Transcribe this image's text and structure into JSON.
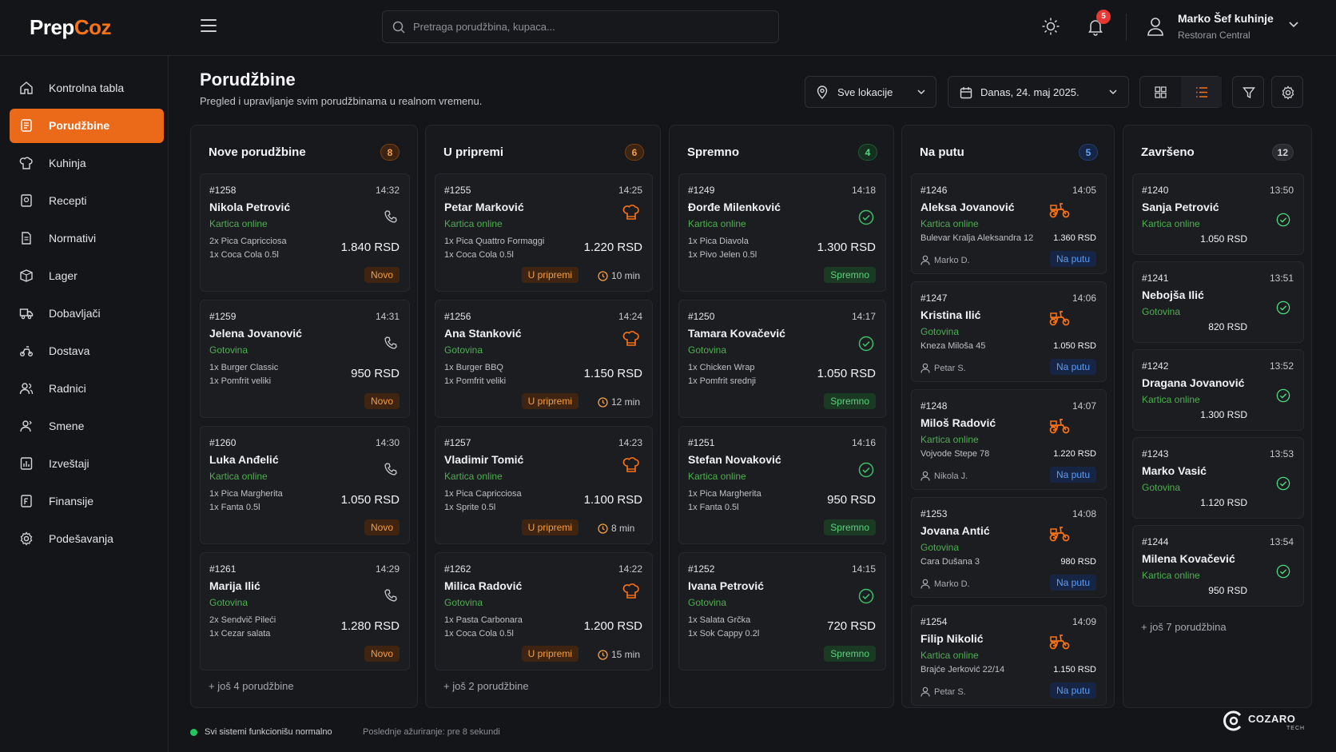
{
  "brand": {
    "part1": "Prep",
    "part2": "Coz"
  },
  "search": {
    "placeholder": "Pretraga porudžbina, kupaca..."
  },
  "notifications": {
    "count": "5"
  },
  "user": {
    "name": "Marko Šef kuhinje",
    "subtitle": "Restoran Central"
  },
  "sidebar": {
    "items": [
      {
        "label": "Kontrolna tabla",
        "icon": "home-icon"
      },
      {
        "label": "Porudžbine",
        "icon": "orders-icon",
        "active": true
      },
      {
        "label": "Kuhinja",
        "icon": "chef-hat-icon"
      },
      {
        "label": "Recepti",
        "icon": "recipe-book-icon"
      },
      {
        "label": "Normativi",
        "icon": "document-list-icon"
      },
      {
        "label": "Lager",
        "icon": "box-icon"
      },
      {
        "label": "Dobavljači",
        "icon": "truck-icon"
      },
      {
        "label": "Dostava",
        "icon": "delivery-icon"
      },
      {
        "label": "Radnici",
        "icon": "users-icon"
      },
      {
        "label": "Smene",
        "icon": "shift-icon"
      },
      {
        "label": "Izveštaji",
        "icon": "chart-icon"
      },
      {
        "label": "Finansije",
        "icon": "finance-icon"
      },
      {
        "label": "Podešavanja",
        "icon": "gear-icon"
      }
    ]
  },
  "page": {
    "title": "Porudžbine",
    "subtitle": "Pregled i upravljanje svim porudžbinama u realnom vremenu.",
    "location_filter": "Sve lokacije",
    "date_filter": "Danas, 24. maj 2025."
  },
  "columns": [
    {
      "title": "Nove porudžbine",
      "count": "8",
      "orders": [
        {
          "id": "#1258",
          "time": "14:32",
          "name": "Nikola Petrović",
          "payment": "Kartica online",
          "items": [
            "2x Pica Capricciosa",
            "1x Coca Cola 0.5l"
          ],
          "price": "1.840 RSD",
          "status": "Novo"
        },
        {
          "id": "#1259",
          "time": "14:31",
          "name": "Jelena Jovanović",
          "payment": "Gotovina",
          "items": [
            "1x Burger Classic",
            "1x Pomfrit veliki"
          ],
          "price": "950 RSD",
          "status": "Novo"
        },
        {
          "id": "#1260",
          "time": "14:30",
          "name": "Luka Anđelić",
          "payment": "Kartica online",
          "items": [
            "1x Pica Margherita",
            "1x Fanta 0.5l"
          ],
          "price": "1.050 RSD",
          "status": "Novo"
        },
        {
          "id": "#1261",
          "time": "14:29",
          "name": "Marija Ilić",
          "payment": "Gotovina",
          "items": [
            "2x Sendvič Pileći",
            "1x Cezar salata"
          ],
          "price": "1.280 RSD",
          "status": "Novo"
        }
      ],
      "more": "+ još 4 porudžbine"
    },
    {
      "title": "U pripremi",
      "count": "6",
      "orders": [
        {
          "id": "#1255",
          "time": "14:25",
          "name": "Petar Marković",
          "payment": "Kartica online",
          "items": [
            "1x Pica Quattro Formaggi",
            "1x Coca Cola 0.5l"
          ],
          "price": "1.220 RSD",
          "status": "U pripremi",
          "timer": "10 min"
        },
        {
          "id": "#1256",
          "time": "14:24",
          "name": "Ana Stanković",
          "payment": "Gotovina",
          "items": [
            "1x Burger BBQ",
            "1x Pomfrit veliki"
          ],
          "price": "1.150 RSD",
          "status": "U pripremi",
          "timer": "12 min"
        },
        {
          "id": "#1257",
          "time": "14:23",
          "name": "Vladimir Tomić",
          "payment": "Kartica online",
          "items": [
            "1x Pica Capricciosa",
            "1x Sprite 0.5l"
          ],
          "price": "1.100 RSD",
          "status": "U pripremi",
          "timer": "8 min"
        },
        {
          "id": "#1262",
          "time": "14:22",
          "name": "Milica Radović",
          "payment": "Gotovina",
          "items": [
            "1x Pasta Carbonara",
            "1x Coca Cola 0.5l"
          ],
          "price": "1.200 RSD",
          "status": "U pripremi",
          "timer": "15 min"
        }
      ],
      "more": "+ još 2 porudžbine"
    },
    {
      "title": "Spremno",
      "count": "4",
      "orders": [
        {
          "id": "#1249",
          "time": "14:18",
          "name": "Đorđe Milenković",
          "payment": "Kartica online",
          "items": [
            "1x Pica Diavola",
            "1x Pivo Jelen 0.5l"
          ],
          "price": "1.300 RSD",
          "status": "Spremno"
        },
        {
          "id": "#1250",
          "time": "14:17",
          "name": "Tamara Kovačević",
          "payment": "Gotovina",
          "items": [
            "1x Chicken Wrap",
            "1x Pomfrit srednji"
          ],
          "price": "1.050 RSD",
          "status": "Spremno"
        },
        {
          "id": "#1251",
          "time": "14:16",
          "name": "Stefan Novaković",
          "payment": "Kartica online",
          "items": [
            "1x Pica Margherita",
            "1x Fanta 0.5l"
          ],
          "price": "950 RSD",
          "status": "Spremno"
        },
        {
          "id": "#1252",
          "time": "14:15",
          "name": "Ivana Petrović",
          "payment": "Gotovina",
          "items": [
            "1x Salata Grčka",
            "1x Sok Cappy 0.2l"
          ],
          "price": "720 RSD",
          "status": "Spremno"
        }
      ]
    },
    {
      "title": "Na putu",
      "count": "5",
      "orders": [
        {
          "id": "#1246",
          "time": "14:05",
          "name": "Aleksa Jovanović",
          "payment": "Kartica online",
          "address": "Bulevar Kralja Aleksandra 12",
          "price": "1.360 RSD",
          "driver": "Marko D.",
          "status": "Na putu"
        },
        {
          "id": "#1247",
          "time": "14:06",
          "name": "Kristina Ilić",
          "payment": "Gotovina",
          "address": "Kneza Miloša 45",
          "price": "1.050 RSD",
          "driver": "Petar S.",
          "status": "Na putu"
        },
        {
          "id": "#1248",
          "time": "14:07",
          "name": "Miloš Radović",
          "payment": "Kartica online",
          "address": "Vojvode Stepe 78",
          "price": "1.220 RSD",
          "driver": "Nikola J.",
          "status": "Na putu"
        },
        {
          "id": "#1253",
          "time": "14:08",
          "name": "Jovana Antić",
          "payment": "Gotovina",
          "address": "Cara Dušana 3",
          "price": "980 RSD",
          "driver": "Marko D.",
          "status": "Na putu"
        },
        {
          "id": "#1254",
          "time": "14:09",
          "name": "Filip Nikolić",
          "payment": "Kartica online",
          "address": "Brajće Jerković 22/14",
          "price": "1.150 RSD",
          "driver": "Petar S.",
          "status": "Na putu"
        }
      ]
    },
    {
      "title": "Završeno",
      "count": "12",
      "orders": [
        {
          "id": "#1240",
          "time": "13:50",
          "name": "Sanja Petrović",
          "payment": "Kartica online",
          "price": "1.050 RSD"
        },
        {
          "id": "#1241",
          "time": "13:51",
          "name": "Nebojša Ilić",
          "payment": "Gotovina",
          "price": "820 RSD"
        },
        {
          "id": "#1242",
          "time": "13:52",
          "name": "Dragana Jovanović",
          "payment": "Kartica online",
          "price": "1.300 RSD"
        },
        {
          "id": "#1243",
          "time": "13:53",
          "name": "Marko Vasić",
          "payment": "Gotovina",
          "price": "1.120 RSD"
        },
        {
          "id": "#1244",
          "time": "13:54",
          "name": "Milena Kovačević",
          "payment": "Kartica online",
          "price": "950 RSD"
        }
      ],
      "more": "+ još 7 porudžbina"
    }
  ],
  "footer": {
    "status": "Svi sistemi funkcionišu normalno",
    "updated": "Poslednje ažuriranje: pre 8 sekundi",
    "company": "COZARO",
    "company_sub": "TECH"
  },
  "colors": {
    "accent": "#ea6a1a",
    "success": "#22c55e",
    "info": "#3b82f6"
  }
}
